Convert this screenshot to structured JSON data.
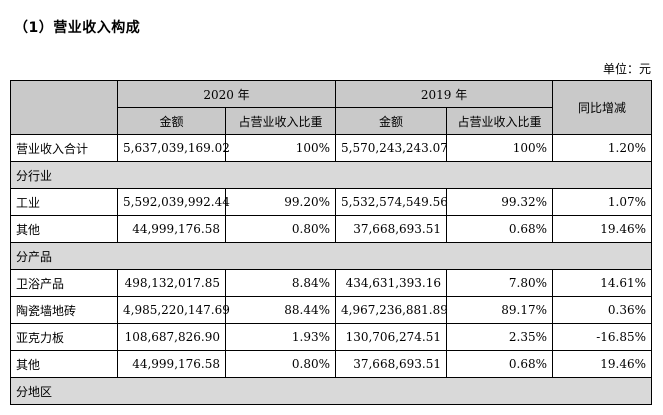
{
  "heading": "（1）营业收入构成",
  "unit": "单位：元",
  "headers": {
    "year_2020": "2020 年",
    "year_2019": "2019 年",
    "yoy": "同比增减",
    "amount": "金额",
    "ratio": "占营业收入比重"
  },
  "total": {
    "label": "营业收入合计",
    "amt2020": "5,637,039,169.02",
    "pct2020": "100%",
    "amt2019": "5,570,243,243.07",
    "pct2019": "100%",
    "yoy": "1.20%"
  },
  "groups": [
    {
      "label": "分行业",
      "rows": [
        {
          "label": "工业",
          "amt2020": "5,592,039,992.44",
          "pct2020": "99.20%",
          "amt2019": "5,532,574,549.56",
          "pct2019": "99.32%",
          "yoy": "1.07%"
        },
        {
          "label": "其他",
          "amt2020": "44,999,176.58",
          "pct2020": "0.80%",
          "amt2019": "37,668,693.51",
          "pct2019": "0.68%",
          "yoy": "19.46%"
        }
      ]
    },
    {
      "label": "分产品",
      "rows": [
        {
          "label": "卫浴产品",
          "amt2020": "498,132,017.85",
          "pct2020": "8.84%",
          "amt2019": "434,631,393.16",
          "pct2019": "7.80%",
          "yoy": "14.61%"
        },
        {
          "label": "陶瓷墙地砖",
          "amt2020": "4,985,220,147.69",
          "pct2020": "88.44%",
          "amt2019": "4,967,236,881.89",
          "pct2019": "89.17%",
          "yoy": "0.36%"
        },
        {
          "label": "亚克力板",
          "amt2020": "108,687,826.90",
          "pct2020": "1.93%",
          "amt2019": "130,706,274.51",
          "pct2019": "2.35%",
          "yoy": "-16.85%"
        },
        {
          "label": "其他",
          "amt2020": "44,999,176.58",
          "pct2020": "0.80%",
          "amt2019": "37,668,693.51",
          "pct2019": "0.68%",
          "yoy": "19.46%"
        }
      ]
    },
    {
      "label": "分地区",
      "rows": []
    }
  ]
}
